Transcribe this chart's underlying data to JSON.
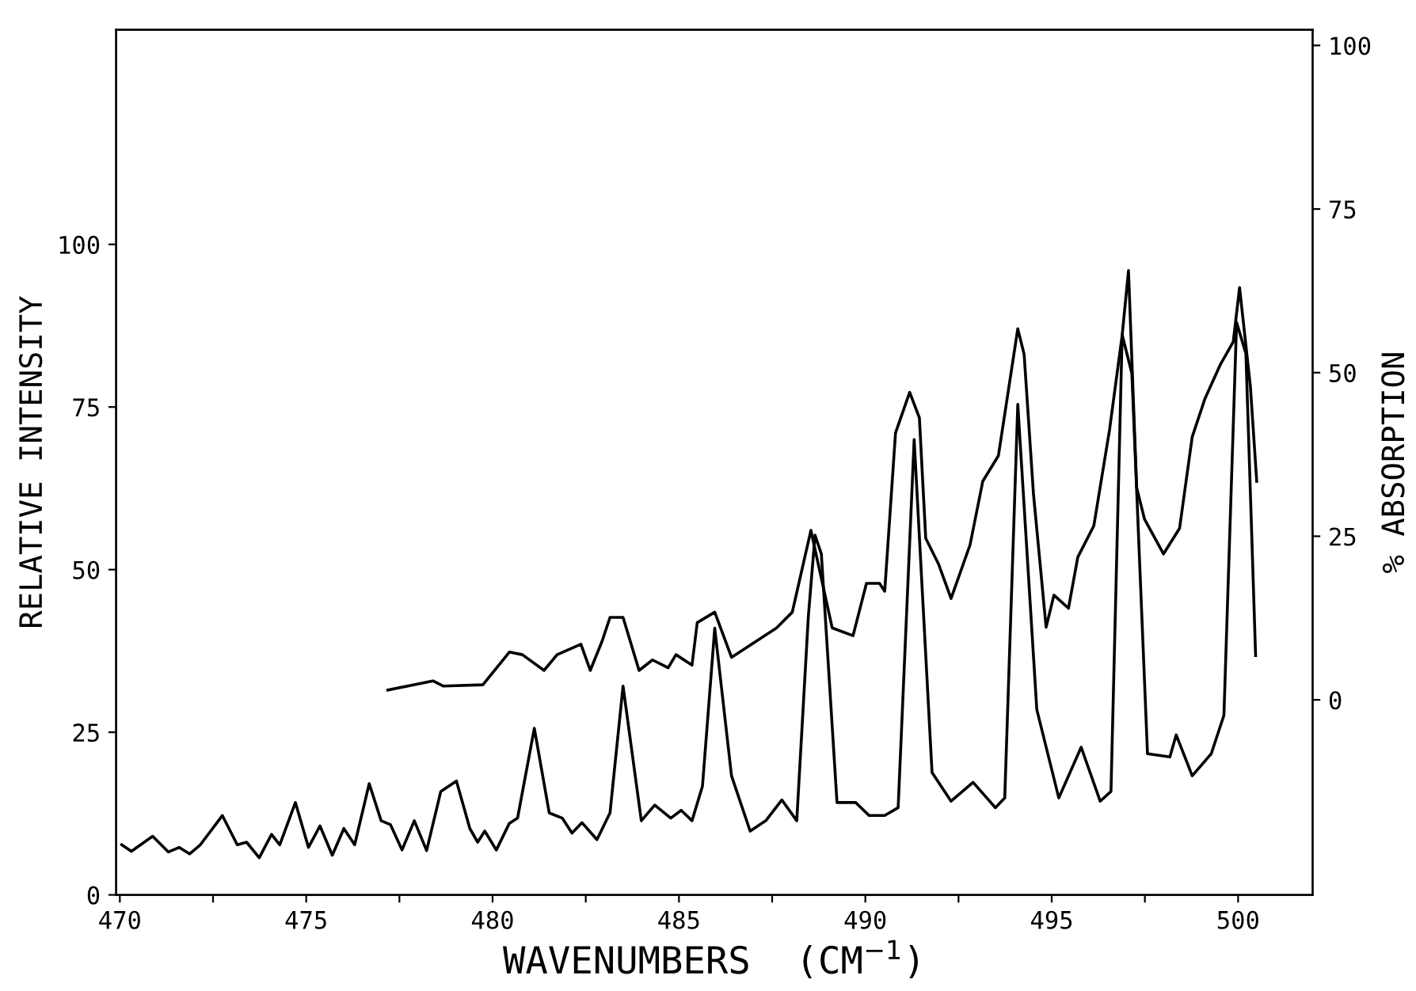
{
  "chart_data": {
    "type": "line",
    "xlabel": "WAVENUMBERS  (CM$^{−1}$)",
    "ylabel": "RELATIVE INTENSITY",
    "y2label": "% ABSORPTION",
    "xlim": [
      469.9,
      502.0
    ],
    "ylim": [
      0,
      133
    ],
    "y2lim": [
      -29.8,
      102.4
    ],
    "xticks": [
      470,
      {
        "value": 472.5,
        "label": null
      },
      475,
      {
        "value": 477.5,
        "label": null
      },
      480,
      {
        "value": 482.5,
        "label": null
      },
      485,
      {
        "value": 487.5,
        "label": null
      },
      490,
      {
        "value": 492.5,
        "label": null
      },
      495,
      {
        "value": 497.5,
        "label": null
      },
      500
    ],
    "yticks": [
      0,
      25,
      50,
      75,
      100
    ],
    "y2ticks": [
      0,
      25,
      50,
      75,
      100
    ],
    "grid": false,
    "line_style": "solid",
    "marker": "none",
    "series": [
      {
        "color": "#000000",
        "x": [
          470.05,
          470.31,
          470.88,
          471.3,
          471.59,
          471.87,
          472.16,
          472.75,
          473.15,
          473.4,
          473.74,
          474.07,
          474.29,
          474.71,
          475.06,
          475.37,
          475.7,
          476.01,
          476.3,
          476.69,
          477.01,
          477.26,
          477.57,
          477.9,
          478.23,
          478.61,
          479.03,
          479.39,
          479.6,
          479.79,
          480.1,
          480.45,
          480.67,
          481.12,
          481.52,
          481.87,
          482.13,
          482.4,
          482.8,
          483.15,
          483.5,
          483.99,
          484.35,
          484.78,
          485.06,
          485.35,
          485.63,
          485.96,
          486.41,
          486.91,
          487.33,
          487.76,
          488.16,
          488.47,
          488.65,
          488.82,
          489.24,
          489.74,
          490.1,
          490.52,
          490.88,
          491.31,
          491.79,
          492.3,
          492.89,
          493.49,
          493.74,
          494.09,
          494.6,
          495.19,
          495.79,
          496.3,
          496.59,
          496.89,
          497.15,
          497.57,
          498.17,
          498.34,
          498.77,
          499.28,
          499.62,
          499.96,
          500.21,
          500.47
        ],
        "values": [
          7.7,
          6.7,
          9.0,
          6.6,
          7.3,
          6.3,
          7.7,
          12.2,
          7.7,
          8.1,
          5.7,
          9.3,
          7.7,
          14.2,
          7.3,
          10.6,
          6.1,
          10.2,
          7.7,
          17.1,
          11.4,
          10.8,
          6.9,
          11.4,
          6.8,
          15.9,
          17.5,
          10.2,
          8.1,
          9.8,
          6.9,
          11.0,
          11.8,
          25.6,
          12.6,
          11.8,
          9.5,
          11.1,
          8.5,
          12.6,
          32.1,
          11.4,
          13.8,
          11.8,
          13.0,
          11.4,
          16.7,
          41.0,
          18.3,
          9.8,
          11.4,
          14.6,
          11.4,
          42.7,
          55.3,
          52.4,
          14.2,
          14.2,
          12.2,
          12.2,
          13.4,
          70.0,
          18.8,
          14.4,
          17.3,
          13.4,
          14.9,
          75.4,
          28.5,
          14.9,
          22.7,
          14.4,
          15.9,
          86.1,
          80.2,
          21.7,
          21.2,
          24.6,
          18.3,
          21.7,
          27.6,
          88.0,
          83.2,
          36.8
        ]
      },
      {
        "color": "#000000",
        "axis": "y2",
        "x": [
          477.19,
          478.4,
          478.68,
          479.74,
          480.45,
          480.8,
          481.38,
          481.73,
          482.37,
          482.62,
          482.94,
          483.15,
          483.5,
          483.93,
          484.29,
          484.71,
          484.92,
          485.35,
          485.49,
          485.96,
          486.41,
          487.19,
          487.62,
          488.04,
          488.54,
          489.11,
          489.67,
          490.03,
          490.38,
          490.52,
          490.81,
          491.19,
          491.45,
          491.62,
          491.96,
          492.3,
          492.81,
          493.15,
          493.57,
          493.83,
          494.09,
          494.26,
          494.51,
          494.85,
          495.06,
          495.45,
          495.7,
          496.13,
          496.55,
          496.89,
          497.06,
          497.28,
          497.49,
          498.0,
          498.43,
          498.77,
          499.11,
          499.53,
          499.87,
          500.04,
          500.33,
          500.5
        ],
        "values": [
          1.5,
          2.9,
          2.1,
          2.3,
          7.3,
          6.9,
          4.5,
          6.9,
          8.5,
          4.5,
          9.0,
          12.6,
          12.6,
          4.5,
          6.1,
          4.9,
          6.9,
          5.3,
          11.8,
          13.4,
          6.5,
          9.4,
          11.0,
          13.4,
          25.9,
          11.0,
          9.8,
          17.8,
          17.8,
          16.6,
          40.8,
          47.0,
          43.1,
          24.7,
          20.8,
          15.5,
          23.7,
          33.4,
          37.3,
          47.0,
          56.7,
          52.8,
          31.5,
          11.1,
          16.0,
          14.0,
          21.8,
          26.6,
          41.2,
          55.7,
          65.6,
          32.4,
          27.6,
          22.3,
          26.2,
          40.2,
          46.0,
          51.3,
          54.7,
          63.0,
          47.9,
          33.4
        ]
      }
    ]
  }
}
